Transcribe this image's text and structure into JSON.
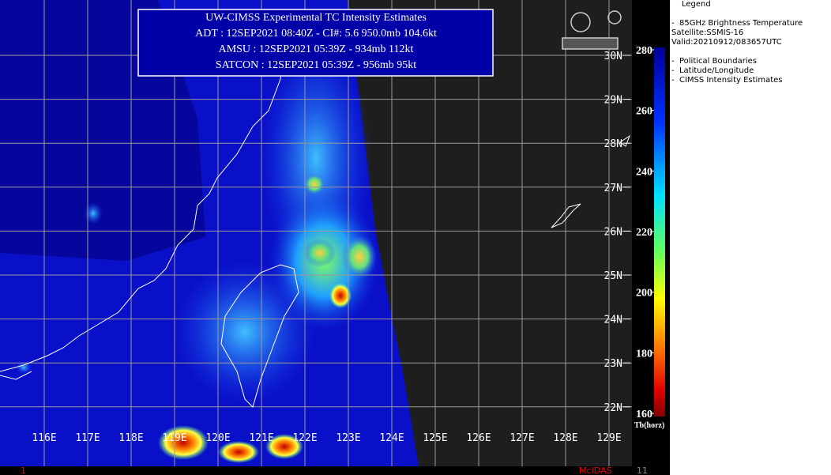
{
  "header": {
    "title": "UW-CIMSS Experimental TC Intensity Estimates",
    "lines": [
      "ADT : 12SEP2021 08:40Z -  CI#: 5.6  950.0mb  104.6kt",
      "AMSU : 12SEP2021 05:39Z -  934mb  112kt",
      "SATCON : 12SEP2021 05:39Z -  956mb  95kt"
    ]
  },
  "map": {
    "lat_labels": [
      "30N",
      "29N",
      "28N",
      "27N",
      "26N",
      "25N",
      "24N",
      "23N",
      "22N"
    ],
    "lon_labels": [
      "116E",
      "117E",
      "118E",
      "119E",
      "120E",
      "121E",
      "122E",
      "123E",
      "124E",
      "125E",
      "126E",
      "127E",
      "128E",
      "129E"
    ]
  },
  "colorbar": {
    "lim": [
      160,
      280
    ],
    "ticks": [
      280,
      260,
      240,
      220,
      200,
      180,
      160
    ],
    "unit": "Tb(horz)"
  },
  "legend": {
    "title": "Legend",
    "items": [
      "-  85GHz Brightness Temperature",
      "Satellite:SSMIS-16",
      "Valid:20210912/083657UTC",
      "-  Political Boundaries",
      "-  Latitude/Longitude",
      "-  CIMSS Intensity Estimates"
    ]
  },
  "footer": {
    "left": "1",
    "center": "McIDAS",
    "right": "11"
  }
}
